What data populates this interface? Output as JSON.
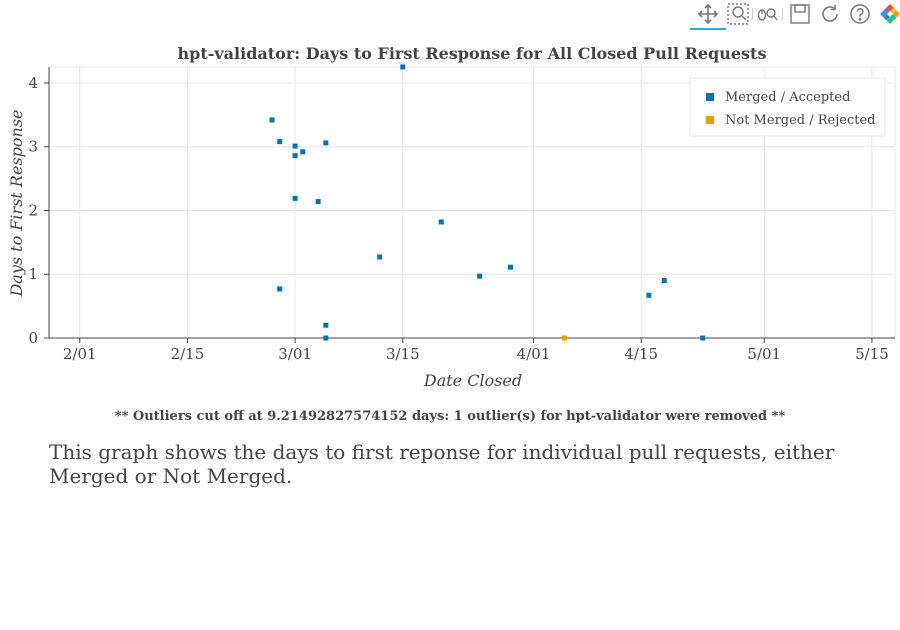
{
  "toolbar": {
    "tools": [
      {
        "name": "pan-icon",
        "active": true
      },
      {
        "name": "box-zoom-icon",
        "active": false
      },
      {
        "name": "wheel-zoom-icon",
        "active": false
      },
      {
        "name": "save-icon",
        "active": false
      },
      {
        "name": "reset-icon",
        "active": false
      },
      {
        "name": "help-icon",
        "active": false
      },
      {
        "name": "bokeh-logo",
        "active": false
      }
    ]
  },
  "chart_data": {
    "type": "scatter",
    "title": "hpt-validator: Days to First Response for All Closed Pull Requests",
    "xlabel": "Date Closed",
    "ylabel": "Days to First Response",
    "x_tick_labels": [
      "2/01",
      "2/15",
      "3/01",
      "3/15",
      "4/01",
      "4/15",
      "5/01",
      "5/15"
    ],
    "y_tick_labels": [
      "0",
      "1",
      "2",
      "3",
      "4"
    ],
    "xlim": [
      "2023-01-28",
      "2023-05-18"
    ],
    "ylim": [
      0,
      4.25
    ],
    "grid": true,
    "legend_position": "top-right",
    "series": [
      {
        "name": "Merged / Accepted",
        "color": "#0072b2",
        "points": [
          {
            "x": "2023-02-26",
            "y": 3.42
          },
          {
            "x": "2023-02-27",
            "y": 3.08
          },
          {
            "x": "2023-02-27",
            "y": 0.77
          },
          {
            "x": "2023-03-01",
            "y": 3.01
          },
          {
            "x": "2023-03-01",
            "y": 2.86
          },
          {
            "x": "2023-03-01",
            "y": 2.19
          },
          {
            "x": "2023-03-02",
            "y": 2.92
          },
          {
            "x": "2023-03-04",
            "y": 2.14
          },
          {
            "x": "2023-03-05",
            "y": 3.06
          },
          {
            "x": "2023-03-05",
            "y": 0.2
          },
          {
            "x": "2023-03-05",
            "y": 0.0
          },
          {
            "x": "2023-03-12",
            "y": 1.27
          },
          {
            "x": "2023-03-15",
            "y": 4.25
          },
          {
            "x": "2023-03-20",
            "y": 1.82
          },
          {
            "x": "2023-03-25",
            "y": 0.97
          },
          {
            "x": "2023-03-29",
            "y": 1.11
          },
          {
            "x": "2023-04-16",
            "y": 0.67
          },
          {
            "x": "2023-04-18",
            "y": 0.9
          },
          {
            "x": "2023-04-23",
            "y": 0.0
          }
        ]
      },
      {
        "name": "Not Merged / Rejected",
        "color": "#e69f00",
        "points": [
          {
            "x": "2023-04-05",
            "y": 0.0
          }
        ]
      }
    ],
    "footnote": "** Outliers cut off at 9.21492827574152 days: 1 outlier(s) for hpt-validator were removed **"
  },
  "description": "This graph shows the days to first reponse for individual pull requests, either Merged or Not Merged."
}
